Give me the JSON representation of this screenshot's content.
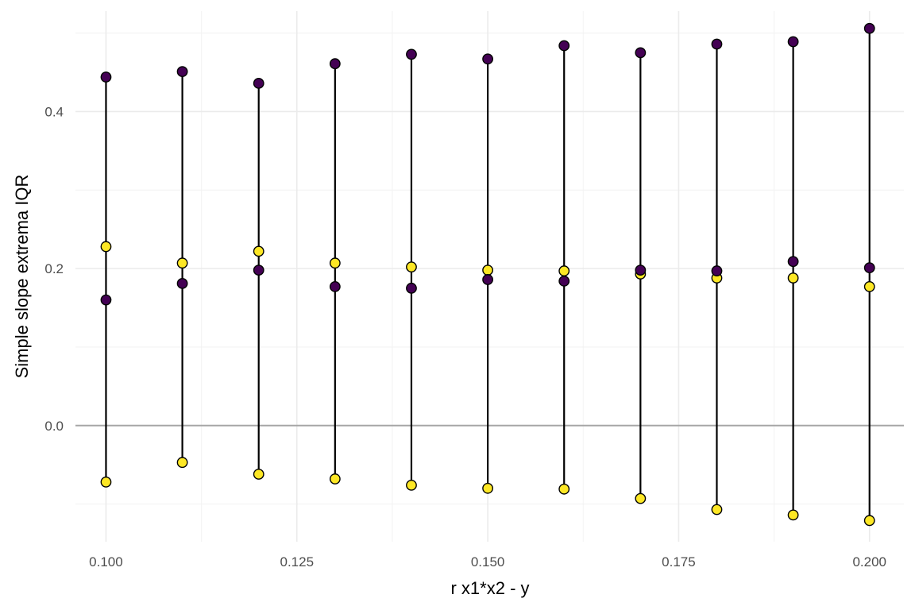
{
  "chart_data": {
    "type": "scatter",
    "title": "",
    "xlabel": "r x1*x2 - y",
    "ylabel": "Simple slope extrema IQR",
    "x": [
      0.1,
      0.11,
      0.12,
      0.13,
      0.14,
      0.15,
      0.16,
      0.17,
      0.18,
      0.19,
      0.2
    ],
    "xlim": [
      0.096,
      0.2045
    ],
    "ylim": [
      -0.148,
      0.528
    ],
    "x_ticks": [
      0.1,
      0.125,
      0.15,
      0.175,
      0.2
    ],
    "x_tick_labels": [
      "0.100",
      "0.125",
      "0.150",
      "0.175",
      "0.200"
    ],
    "x_minor_ticks": [
      0.1125,
      0.1375,
      0.1625,
      0.1875
    ],
    "y_ticks": [
      0.0,
      0.2,
      0.4
    ],
    "y_tick_labels": [
      "0.0",
      "0.2",
      "0.4"
    ],
    "y_minor_ticks": [
      -0.1,
      0.1,
      0.3,
      0.5
    ],
    "reference_line_y": 0,
    "grid": true,
    "legend": "none",
    "series": [
      {
        "name": "dark",
        "color": "#440154",
        "points": [
          {
            "x": 0.1,
            "y_min": 0.16,
            "y_max": 0.444
          },
          {
            "x": 0.11,
            "y_min": 0.181,
            "y_max": 0.451
          },
          {
            "x": 0.12,
            "y_min": 0.198,
            "y_max": 0.436
          },
          {
            "x": 0.13,
            "y_min": 0.177,
            "y_max": 0.461
          },
          {
            "x": 0.14,
            "y_min": 0.175,
            "y_max": 0.473
          },
          {
            "x": 0.15,
            "y_min": 0.186,
            "y_max": 0.467
          },
          {
            "x": 0.16,
            "y_min": 0.184,
            "y_max": 0.484
          },
          {
            "x": 0.17,
            "y_min": 0.198,
            "y_max": 0.475
          },
          {
            "x": 0.18,
            "y_min": 0.197,
            "y_max": 0.486
          },
          {
            "x": 0.19,
            "y_min": 0.209,
            "y_max": 0.489
          },
          {
            "x": 0.2,
            "y_min": 0.201,
            "y_max": 0.506
          }
        ]
      },
      {
        "name": "light",
        "color": "#FDE725",
        "points": [
          {
            "x": 0.1,
            "y_min": -0.072,
            "y_max": 0.228
          },
          {
            "x": 0.11,
            "y_min": -0.047,
            "y_max": 0.207
          },
          {
            "x": 0.12,
            "y_min": -0.062,
            "y_max": 0.222
          },
          {
            "x": 0.13,
            "y_min": -0.068,
            "y_max": 0.207
          },
          {
            "x": 0.14,
            "y_min": -0.076,
            "y_max": 0.202
          },
          {
            "x": 0.15,
            "y_min": -0.08,
            "y_max": 0.198
          },
          {
            "x": 0.16,
            "y_min": -0.081,
            "y_max": 0.197
          },
          {
            "x": 0.17,
            "y_min": -0.093,
            "y_max": 0.193
          },
          {
            "x": 0.18,
            "y_min": -0.107,
            "y_max": 0.188
          },
          {
            "x": 0.19,
            "y_min": -0.114,
            "y_max": 0.188
          },
          {
            "x": 0.2,
            "y_min": -0.121,
            "y_max": 0.177
          }
        ]
      }
    ]
  }
}
